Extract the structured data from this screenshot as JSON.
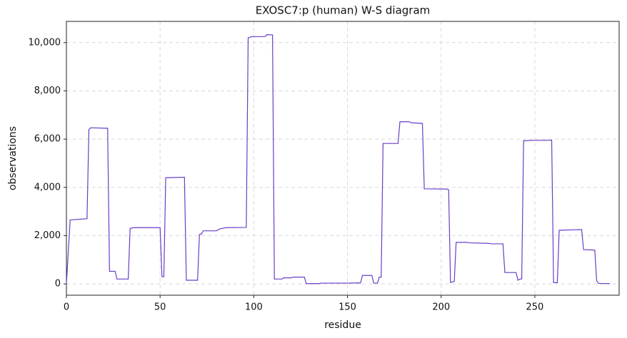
{
  "chart_data": {
    "type": "line",
    "title": "EXOSC7:p (human) W-S diagram",
    "x_label": "residue",
    "y_label": "observations",
    "color": "#6a3dc8",
    "grid": true,
    "x": [
      0,
      2,
      11,
      12,
      13,
      22,
      23,
      26,
      27,
      33,
      34,
      36,
      50,
      51,
      52,
      53,
      63,
      64,
      70,
      71,
      72,
      73,
      80,
      82,
      85,
      96,
      97,
      99,
      106,
      107,
      110,
      111,
      115,
      116,
      120,
      121,
      127,
      128,
      135,
      136,
      150,
      155,
      157,
      158,
      163,
      164,
      166,
      167,
      168,
      169,
      177,
      178,
      183,
      184,
      190,
      191,
      203,
      204,
      205,
      207,
      208,
      214,
      215,
      225,
      227,
      233,
      234,
      240,
      241,
      242,
      243,
      244,
      249,
      256,
      259,
      260,
      262,
      263,
      270,
      275,
      276,
      282,
      283,
      284,
      290
    ],
    "values": [
      0,
      2650,
      2700,
      6400,
      6470,
      6450,
      520,
      520,
      200,
      200,
      2300,
      2330,
      2330,
      300,
      300,
      4400,
      4420,
      150,
      150,
      2050,
      2060,
      2200,
      2200,
      2280,
      2330,
      2340,
      10200,
      10250,
      10250,
      10330,
      10320,
      200,
      200,
      250,
      250,
      280,
      280,
      10,
      10,
      30,
      30,
      40,
      40,
      350,
      350,
      30,
      30,
      280,
      280,
      5820,
      5820,
      6720,
      6720,
      6680,
      6650,
      3940,
      3930,
      3900,
      60,
      100,
      1720,
      1720,
      1700,
      1680,
      1660,
      1660,
      470,
      470,
      150,
      200,
      200,
      5930,
      5950,
      5950,
      5960,
      50,
      50,
      2220,
      2240,
      2250,
      1420,
      1400,
      130,
      20,
      10
    ],
    "xlim": [
      0,
      295
    ],
    "xticks": [
      0,
      50,
      100,
      150,
      200,
      250
    ],
    "ylim": [
      -470,
      10880
    ],
    "yticks": [
      0,
      {
        "value": 2000,
        "label": "2,000"
      },
      {
        "value": 4000,
        "label": "4,000"
      },
      {
        "value": 6000,
        "label": "6,000"
      },
      {
        "value": 8000,
        "label": "8,000"
      },
      {
        "value": 10000,
        "label": "10,000"
      }
    ]
  }
}
